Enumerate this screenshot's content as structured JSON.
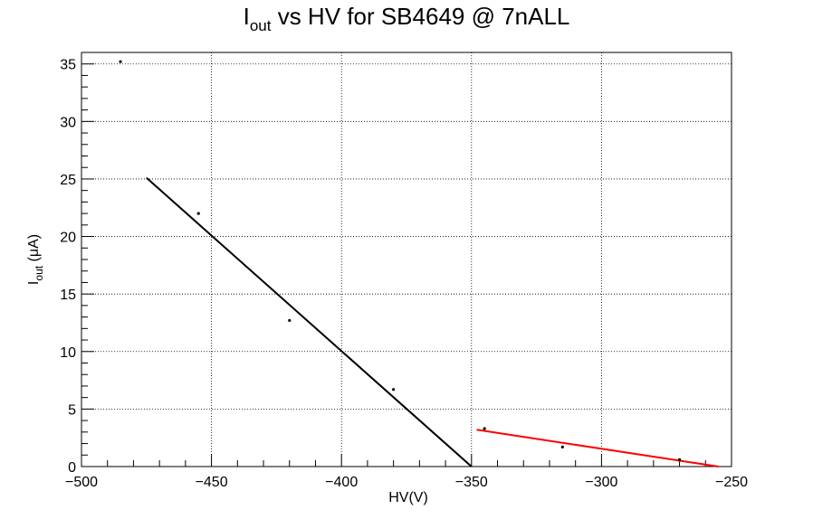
{
  "chart_data": {
    "type": "scatter",
    "title_main": "I",
    "title_sub": "out",
    "title_rest": " vs HV for SB4649 @ 7nALL",
    "xlabel": "HV(V)",
    "ylabel_main": "I",
    "ylabel_sub": "out",
    "ylabel_rest": " (μA)",
    "xlim": [
      -500,
      -250
    ],
    "ylim": [
      0,
      36
    ],
    "x_ticks": [
      -500,
      -450,
      -400,
      -350,
      -300,
      -250
    ],
    "x_tick_labels": [
      "−500",
      "−450",
      "−400",
      "−350",
      "−300",
      "−250"
    ],
    "y_ticks": [
      0,
      5,
      10,
      15,
      20,
      25,
      30,
      35
    ],
    "y_tick_labels": [
      "0",
      "5",
      "10",
      "15",
      "20",
      "25",
      "30",
      "35"
    ],
    "grid": true,
    "points": [
      {
        "x": -485,
        "y": 35.2
      },
      {
        "x": -455,
        "y": 22.0
      },
      {
        "x": -420,
        "y": 12.7
      },
      {
        "x": -380,
        "y": 6.7
      },
      {
        "x": -345,
        "y": 3.3
      },
      {
        "x": -315,
        "y": 1.7
      },
      {
        "x": -270,
        "y": 0.6
      }
    ],
    "fits": [
      {
        "color": "#000000",
        "x": [
          -475,
          -350
        ],
        "y": [
          25.1,
          0.0
        ]
      },
      {
        "color": "#ff0000",
        "x": [
          -348,
          -255
        ],
        "y": [
          3.2,
          0.0
        ]
      }
    ]
  }
}
